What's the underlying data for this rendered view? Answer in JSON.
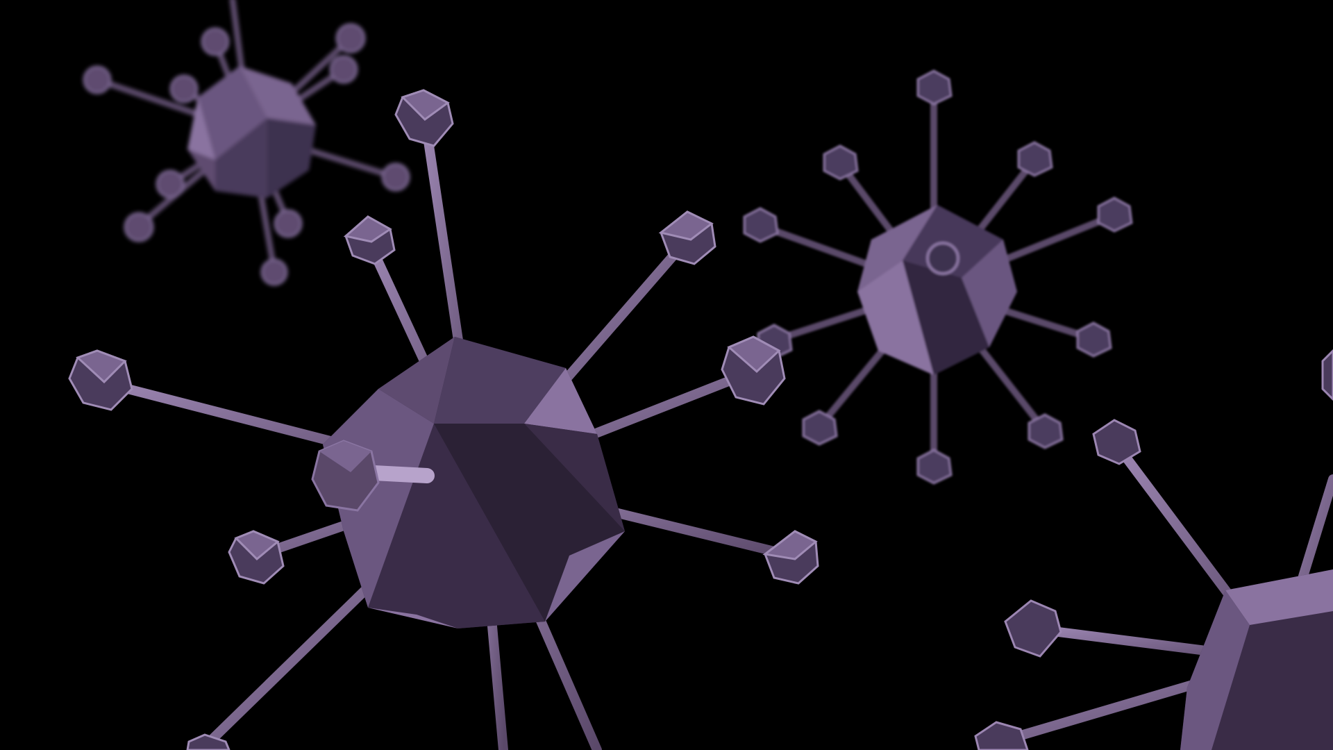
{
  "scene": {
    "background_color": "#000000",
    "palette": {
      "rod": "#6e5a80",
      "rod_highlight": "#9c86b2",
      "tip_light": "#8d78a3",
      "tip_dark": "#3a2c47",
      "body_light": "#8a73a0",
      "body_mid": "#5e4b70",
      "body_dark": "#2c2236"
    },
    "objects": [
      {
        "name": "virus-particle-large-center",
        "focus": "sharp"
      },
      {
        "name": "virus-particle-top-left",
        "focus": "far-blur"
      },
      {
        "name": "virus-particle-right",
        "focus": "mid-blur"
      },
      {
        "name": "virus-particle-bottom-right",
        "focus": "sharp"
      }
    ]
  }
}
